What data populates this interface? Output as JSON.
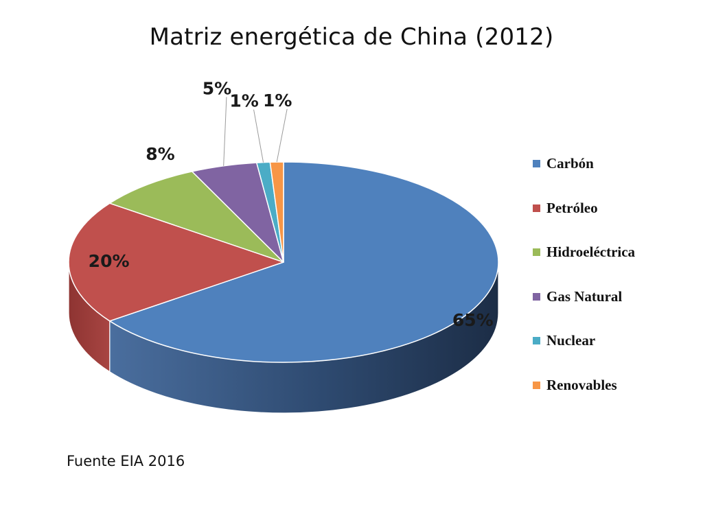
{
  "chart_data": {
    "type": "pie",
    "title": "Matriz energética de China (2012)",
    "categories": [
      "Carbón",
      "Petróleo",
      "Hidroeléctrica",
      "Gas Natural",
      "Nuclear",
      "Renovables"
    ],
    "values": [
      65,
      20,
      8,
      5,
      1,
      1
    ],
    "data_labels": [
      "65%",
      "20%",
      "8%",
      "5%",
      "1%",
      "1%"
    ],
    "colors": [
      "#4f81bd",
      "#c0504d",
      "#9bbb59",
      "#8064a2",
      "#4bacc6",
      "#f79646"
    ],
    "unit": "%",
    "style": "3d",
    "legend_position": "right"
  },
  "note": "Fuente EIA 2016"
}
